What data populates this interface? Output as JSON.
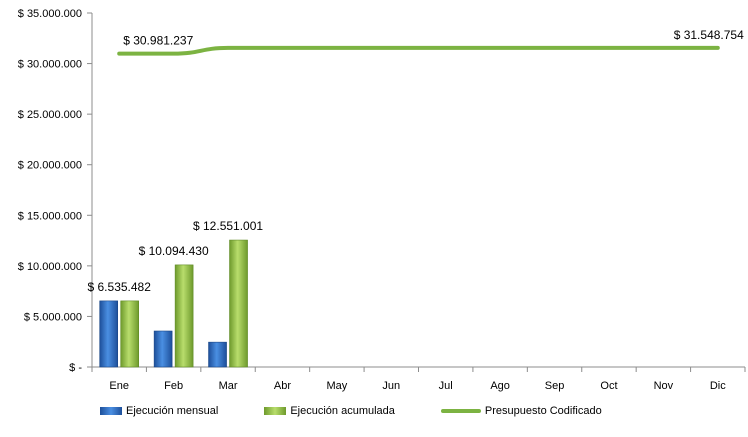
{
  "chart_data": {
    "type": "bar",
    "categories": [
      "Ene",
      "Feb",
      "Mar",
      "Abr",
      "May",
      "Jun",
      "Jul",
      "Ago",
      "Sep",
      "Oct",
      "Nov",
      "Dic"
    ],
    "series": [
      {
        "name": "Ejecución mensual",
        "type": "bar",
        "color": "#2e6fc8",
        "values": [
          6535482,
          3558948,
          2456571,
          null,
          null,
          null,
          null,
          null,
          null,
          null,
          null,
          null
        ]
      },
      {
        "name": "Ejecución acumulada",
        "type": "bar",
        "color": "#9bc84a",
        "values": [
          6535482,
          10094430,
          12551001,
          null,
          null,
          null,
          null,
          null,
          null,
          null,
          null,
          null
        ]
      },
      {
        "name": "Presupuesto Codificado",
        "type": "line",
        "color": "#7cb342",
        "values": [
          30981237,
          30981237,
          31548754,
          31548754,
          31548754,
          31548754,
          31548754,
          31548754,
          31548754,
          31548754,
          31548754,
          31548754
        ]
      }
    ],
    "data_labels": [
      {
        "text": "$ 6.535.482",
        "category": "Ene",
        "series": "Ejecución acumulada"
      },
      {
        "text": "$ 10.094.430",
        "category": "Feb",
        "series": "Ejecución acumulada"
      },
      {
        "text": "$ 12.551.001",
        "category": "Mar",
        "series": "Ejecución acumulada"
      },
      {
        "text": "$ 30.981.237",
        "category": "Ene",
        "series": "Presupuesto Codificado"
      },
      {
        "text": "$ 31.548.754",
        "category": "Dic",
        "series": "Presupuesto Codificado"
      }
    ],
    "yticks": [
      0,
      5000000,
      10000000,
      15000000,
      20000000,
      25000000,
      30000000,
      35000000
    ],
    "ytick_labels": [
      "$ -",
      "$ 5.000.000",
      "$ 10.000.000",
      "$ 15.000.000",
      "$ 20.000.000",
      "$ 25.000.000",
      "$ 30.000.000",
      "$ 35.000.000"
    ],
    "ylim": [
      0,
      35000000
    ],
    "grid": false,
    "legend_position": "bottom",
    "title": "",
    "xlabel": "",
    "ylabel": ""
  }
}
